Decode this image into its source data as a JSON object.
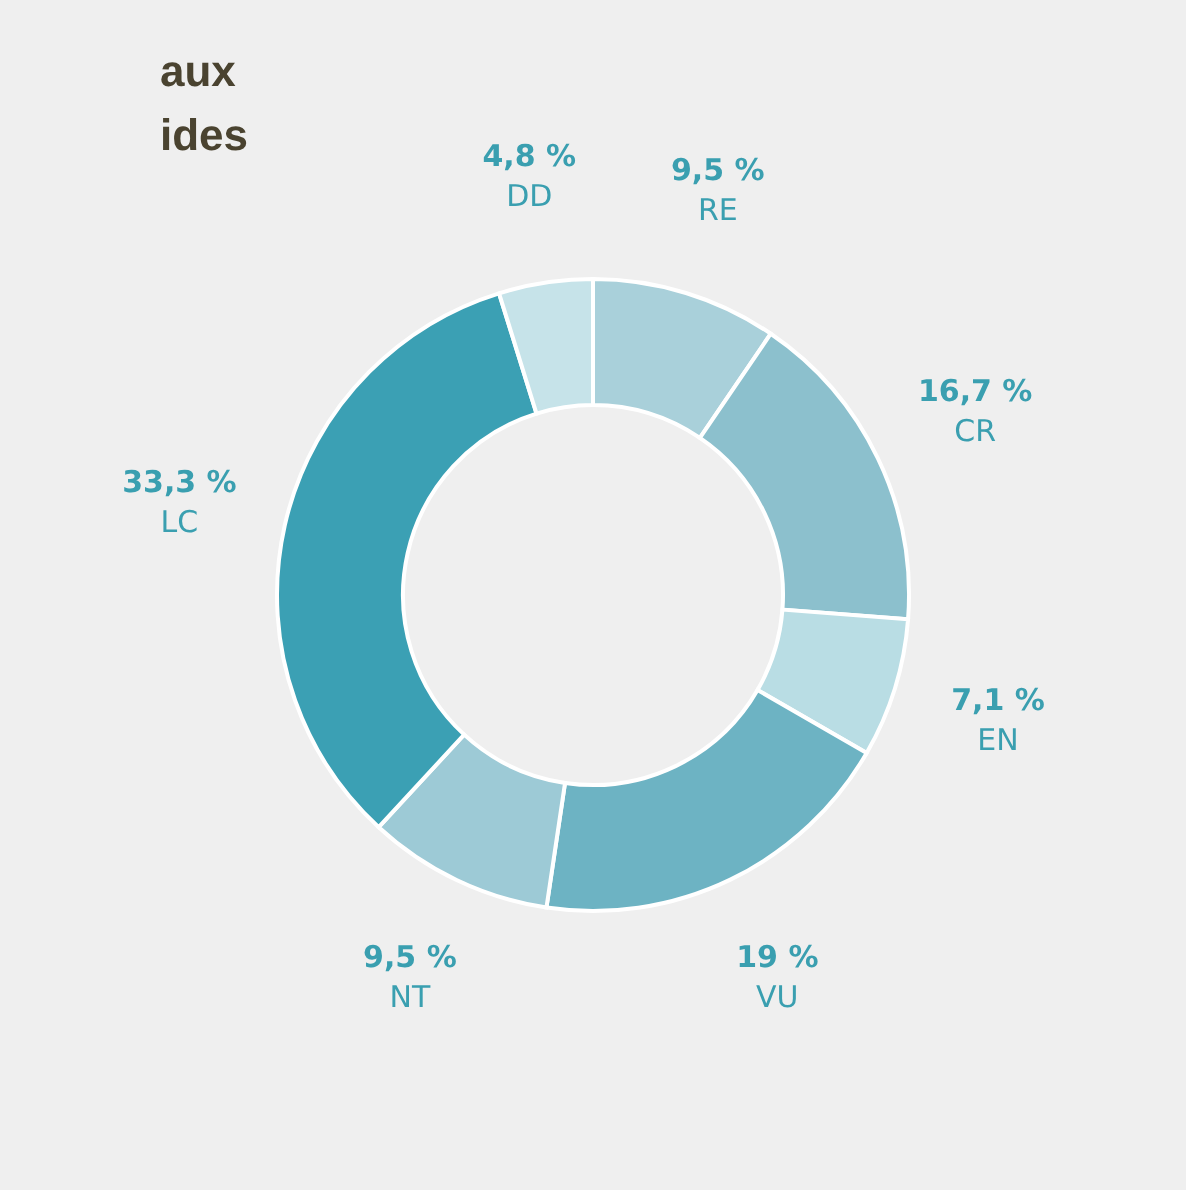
{
  "chart_data": {
    "type": "donut",
    "title": "aux\nides",
    "categories": [
      "RE",
      "CR",
      "EN",
      "VU",
      "NT",
      "LC",
      "DD"
    ],
    "values": [
      9.5,
      16.7,
      7.1,
      19,
      9.5,
      33.3,
      4.8
    ],
    "value_labels": [
      "9,5 %",
      "16,7 %",
      "7,1 %",
      "19 %",
      "9,5 %",
      "33,3 %",
      "4,8 %"
    ],
    "colors": [
      "#a9d0da",
      "#8cc0cd",
      "#b9dde4",
      "#6db3c3",
      "#9dcad6",
      "#3ba0b4",
      "#c6e3e9"
    ],
    "legend": false
  }
}
